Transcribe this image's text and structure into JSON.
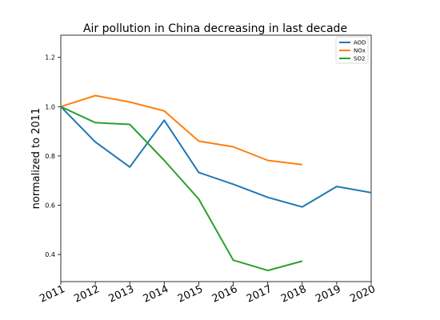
{
  "chart_data": {
    "type": "line",
    "title": "Air pollution in China decreasing in last decade",
    "xlabel": "",
    "ylabel": "normalized to 2011",
    "x": [
      2011,
      2012,
      2013,
      2014,
      2015,
      2016,
      2017,
      2018,
      2019,
      2020
    ],
    "xticks": [
      "2011",
      "2012",
      "2013",
      "2014",
      "2015",
      "2016",
      "2017",
      "2018",
      "2019",
      "2020"
    ],
    "yticks": [
      "0.4",
      "0.6",
      "0.8",
      "1.0",
      "1.2"
    ],
    "xlim": [
      2011,
      2020
    ],
    "ylim": [
      0.29,
      1.29
    ],
    "grid": false,
    "legend_position": "top-right",
    "series": [
      {
        "name": "AOD",
        "color": "#1f77b4",
        "x": [
          2011,
          2012,
          2013,
          2014,
          2015,
          2016,
          2017,
          2018,
          2019,
          2020
        ],
        "values": [
          1.0,
          0.857,
          0.755,
          0.945,
          0.733,
          0.685,
          0.632,
          0.593,
          0.676,
          0.651
        ]
      },
      {
        "name": "NOx",
        "color": "#ff7f0e",
        "x": [
          2011,
          2012,
          2013,
          2014,
          2015,
          2016,
          2017,
          2018
        ],
        "values": [
          1.0,
          1.045,
          1.019,
          0.983,
          0.86,
          0.837,
          0.782,
          0.765
        ]
      },
      {
        "name": "SO2",
        "color": "#2ca02c",
        "x": [
          2011,
          2012,
          2013,
          2014,
          2015,
          2016,
          2017,
          2018
        ],
        "values": [
          1.0,
          0.935,
          0.928,
          0.782,
          0.625,
          0.377,
          0.335,
          0.373
        ]
      }
    ]
  }
}
